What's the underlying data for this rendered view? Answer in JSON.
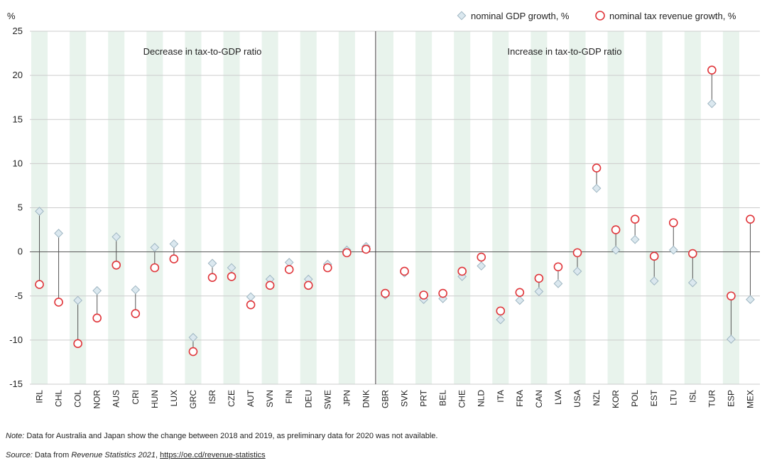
{
  "chart_data": {
    "type": "scatter",
    "y_unit_label": "%",
    "ylim": [
      -15,
      25
    ],
    "yticks": [
      -15,
      -10,
      -5,
      0,
      5,
      10,
      15,
      20,
      25
    ],
    "legend": {
      "position": "top-right",
      "gdp_label": "nominal GDP growth, %",
      "tax_label": "nominal tax revenue growth, %"
    },
    "group_labels": {
      "left": "Decrease in tax-to-GDP ratio",
      "right": "Increase in tax-to-GDP ratio"
    },
    "categories": [
      "IRL",
      "CHL",
      "COL",
      "NOR",
      "AUS",
      "CRI",
      "HUN",
      "LUX",
      "GRC",
      "ISR",
      "CZE",
      "AUT",
      "SVN",
      "FIN",
      "DEU",
      "SWE",
      "JPN",
      "DNK",
      "GBR",
      "SVK",
      "PRT",
      "BEL",
      "CHE",
      "NLD",
      "ITA",
      "FRA",
      "CAN",
      "LVA",
      "USA",
      "NZL",
      "KOR",
      "POL",
      "EST",
      "LTU",
      "ISL",
      "TUR",
      "ESP",
      "MEX"
    ],
    "series": [
      {
        "name": "nominal GDP growth, %",
        "values": [
          4.6,
          2.1,
          -5.5,
          -4.4,
          1.7,
          -4.3,
          0.5,
          0.9,
          -9.7,
          -1.3,
          -1.8,
          -5.1,
          -3.1,
          -1.2,
          -3.1,
          -1.4,
          0.2,
          0.6,
          -4.9,
          -2.4,
          -5.4,
          -5.3,
          -2.8,
          -1.6,
          -7.7,
          -5.5,
          -4.5,
          -3.6,
          -2.2,
          7.2,
          0.2,
          1.4,
          -3.3,
          0.2,
          -3.5,
          16.8,
          -9.9,
          -5.4
        ]
      },
      {
        "name": "nominal tax revenue growth, %",
        "values": [
          -3.7,
          -5.7,
          -10.4,
          -7.5,
          -1.5,
          -7.0,
          -1.8,
          -0.8,
          -11.3,
          -2.9,
          -2.8,
          -6.0,
          -3.8,
          -2.0,
          -3.8,
          -1.8,
          -0.1,
          0.3,
          -4.7,
          -2.2,
          -4.9,
          -4.7,
          -2.2,
          -0.6,
          -6.7,
          -4.6,
          -3.0,
          -1.7,
          -0.1,
          9.5,
          2.5,
          3.7,
          -0.5,
          3.3,
          -0.2,
          20.6,
          -5.0,
          3.7
        ]
      }
    ],
    "split_after": "DNK",
    "grid": true
  },
  "notes": {
    "note_label": "Note:",
    "note_text": " Data for Australia and Japan show the change between 2018 and 2019, as preliminary data for 2020 was not available.",
    "source_label": "Source:",
    "source_text_1": " Data from ",
    "source_title": "Revenue Statistics 2021",
    "source_text_2": ", ",
    "source_link": "https://oe.cd/revenue-statistics"
  },
  "colors": {
    "gdp_fill": "#dbe8ef",
    "gdp_stroke": "#9fb6c2",
    "tax_stroke": "#e0353a",
    "band": "#e8f3ec",
    "grid": "#cccccc",
    "stem": "#555555"
  }
}
